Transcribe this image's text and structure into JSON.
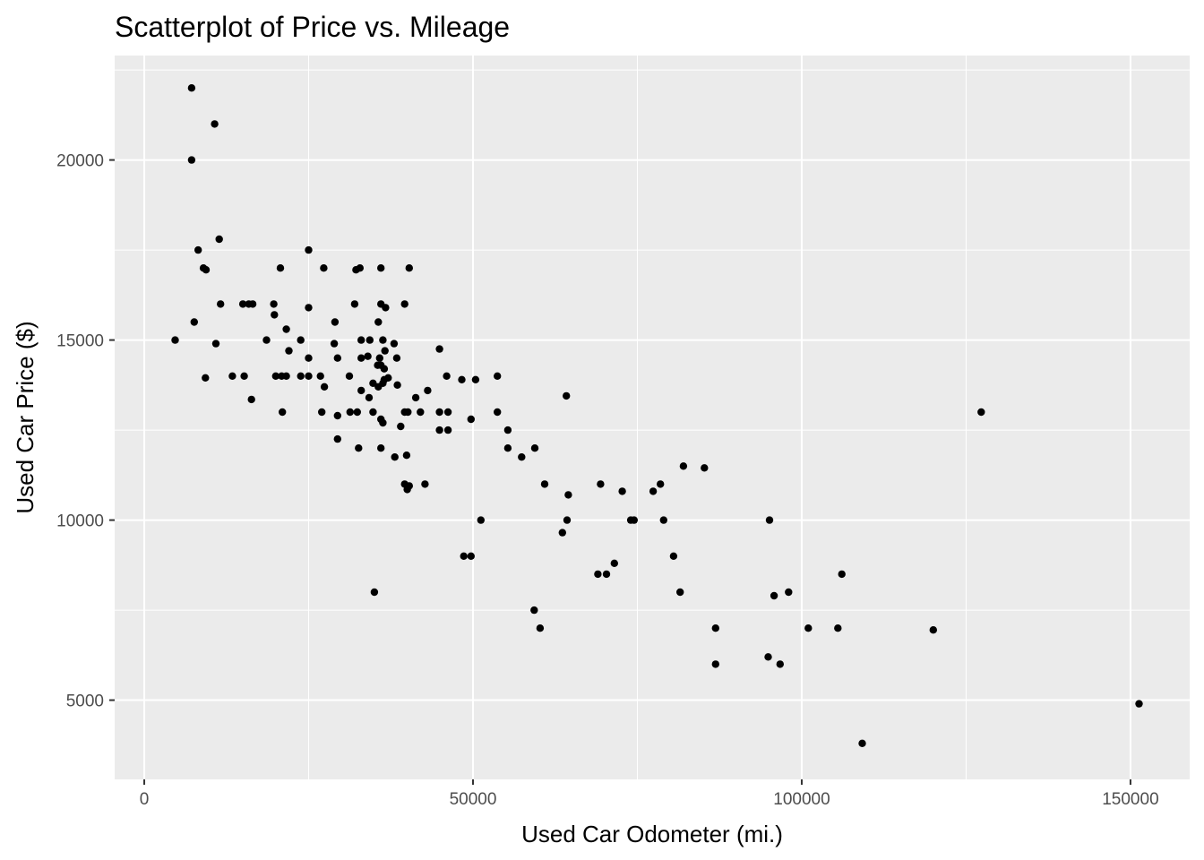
{
  "chart_data": {
    "type": "scatter",
    "title": "Scatterplot of Price vs. Mileage",
    "xlabel": "Used Car Odometer (mi.)",
    "ylabel": "Used Car Price ($)",
    "xlim": [
      -4500,
      159000
    ],
    "ylim": [
      2800,
      22900
    ],
    "x_ticks": [
      0,
      50000,
      100000,
      150000
    ],
    "x_tick_labels": [
      "0",
      "50000",
      "100000",
      "150000"
    ],
    "y_ticks": [
      5000,
      10000,
      15000,
      20000
    ],
    "y_tick_labels": [
      "5000",
      "10000",
      "15000",
      "20000"
    ],
    "grid": true,
    "panel_background": "#ebebeb",
    "grid_color": "#ffffff",
    "point_color": "#000000",
    "points": [
      [
        7200,
        22000
      ],
      [
        10700,
        21000
      ],
      [
        7200,
        20000
      ],
      [
        11400,
        17800
      ],
      [
        8200,
        17500
      ],
      [
        25000,
        17500
      ],
      [
        9000,
        17000
      ],
      [
        9400,
        16950
      ],
      [
        20700,
        17000
      ],
      [
        27300,
        17000
      ],
      [
        32200,
        16950
      ],
      [
        32800,
        17000
      ],
      [
        36000,
        17000
      ],
      [
        40300,
        17000
      ],
      [
        11600,
        16000
      ],
      [
        15000,
        16000
      ],
      [
        15900,
        16000
      ],
      [
        16500,
        16000
      ],
      [
        19700,
        16000
      ],
      [
        25000,
        15900
      ],
      [
        32000,
        16000
      ],
      [
        36000,
        16000
      ],
      [
        36700,
        15900
      ],
      [
        39600,
        16000
      ],
      [
        19800,
        15700
      ],
      [
        7600,
        15500
      ],
      [
        29000,
        15500
      ],
      [
        35600,
        15500
      ],
      [
        21600,
        15300
      ],
      [
        4700,
        15000
      ],
      [
        10900,
        14900
      ],
      [
        18600,
        15000
      ],
      [
        23800,
        15000
      ],
      [
        28900,
        14900
      ],
      [
        33000,
        15000
      ],
      [
        34300,
        15000
      ],
      [
        36300,
        15000
      ],
      [
        38000,
        14900
      ],
      [
        22000,
        14700
      ],
      [
        36600,
        14700
      ],
      [
        44900,
        14750
      ],
      [
        25000,
        14500
      ],
      [
        29400,
        14500
      ],
      [
        33000,
        14500
      ],
      [
        34000,
        14550
      ],
      [
        35800,
        14500
      ],
      [
        38400,
        14500
      ],
      [
        35500,
        14300
      ],
      [
        36000,
        14300
      ],
      [
        36500,
        14200
      ],
      [
        9300,
        13950
      ],
      [
        13400,
        14000
      ],
      [
        15200,
        14000
      ],
      [
        20000,
        14000
      ],
      [
        20900,
        14000
      ],
      [
        21600,
        14000
      ],
      [
        23800,
        14000
      ],
      [
        25000,
        14000
      ],
      [
        26800,
        14000
      ],
      [
        31200,
        14000
      ],
      [
        36500,
        13900
      ],
      [
        37100,
        13950
      ],
      [
        46000,
        14000
      ],
      [
        48300,
        13900
      ],
      [
        50400,
        13900
      ],
      [
        53700,
        14000
      ],
      [
        34800,
        13800
      ],
      [
        36300,
        13800
      ],
      [
        38500,
        13750
      ],
      [
        27400,
        13700
      ],
      [
        35600,
        13700
      ],
      [
        33000,
        13600
      ],
      [
        43100,
        13600
      ],
      [
        16300,
        13350
      ],
      [
        34200,
        13400
      ],
      [
        41300,
        13400
      ],
      [
        64200,
        13450
      ],
      [
        21000,
        13000
      ],
      [
        27000,
        13000
      ],
      [
        31300,
        13000
      ],
      [
        32400,
        13000
      ],
      [
        34800,
        13000
      ],
      [
        39600,
        13000
      ],
      [
        40100,
        13000
      ],
      [
        42000,
        13000
      ],
      [
        44900,
        13000
      ],
      [
        46200,
        13000
      ],
      [
        53700,
        13000
      ],
      [
        127300,
        13000
      ],
      [
        29400,
        12900
      ],
      [
        36000,
        12800
      ],
      [
        49700,
        12800
      ],
      [
        36300,
        12700
      ],
      [
        39000,
        12600
      ],
      [
        44900,
        12500
      ],
      [
        46200,
        12500
      ],
      [
        55300,
        12500
      ],
      [
        29400,
        12250
      ],
      [
        32600,
        12000
      ],
      [
        36000,
        12000
      ],
      [
        55300,
        12000
      ],
      [
        59400,
        12000
      ],
      [
        38100,
        11750
      ],
      [
        39900,
        11800
      ],
      [
        57400,
        11750
      ],
      [
        82000,
        11500
      ],
      [
        85200,
        11450
      ],
      [
        39600,
        11000
      ],
      [
        40300,
        10950
      ],
      [
        40000,
        10850
      ],
      [
        42700,
        11000
      ],
      [
        60900,
        11000
      ],
      [
        69400,
        11000
      ],
      [
        78500,
        11000
      ],
      [
        72700,
        10800
      ],
      [
        77400,
        10800
      ],
      [
        64500,
        10700
      ],
      [
        51200,
        10000
      ],
      [
        64300,
        10000
      ],
      [
        74000,
        10000
      ],
      [
        74500,
        10000
      ],
      [
        79000,
        10000
      ],
      [
        95100,
        10000
      ],
      [
        63600,
        9650
      ],
      [
        48600,
        9000
      ],
      [
        49700,
        9000
      ],
      [
        80500,
        9000
      ],
      [
        71500,
        8800
      ],
      [
        69000,
        8500
      ],
      [
        70300,
        8500
      ],
      [
        106100,
        8500
      ],
      [
        35000,
        8000
      ],
      [
        81500,
        8000
      ],
      [
        98000,
        8000
      ],
      [
        95800,
        7900
      ],
      [
        59300,
        7500
      ],
      [
        60200,
        7000
      ],
      [
        86900,
        7000
      ],
      [
        101000,
        7000
      ],
      [
        105500,
        7000
      ],
      [
        120000,
        6950
      ],
      [
        94900,
        6200
      ],
      [
        86900,
        6000
      ],
      [
        96700,
        6000
      ],
      [
        151300,
        4900
      ],
      [
        109200,
        3800
      ]
    ]
  }
}
